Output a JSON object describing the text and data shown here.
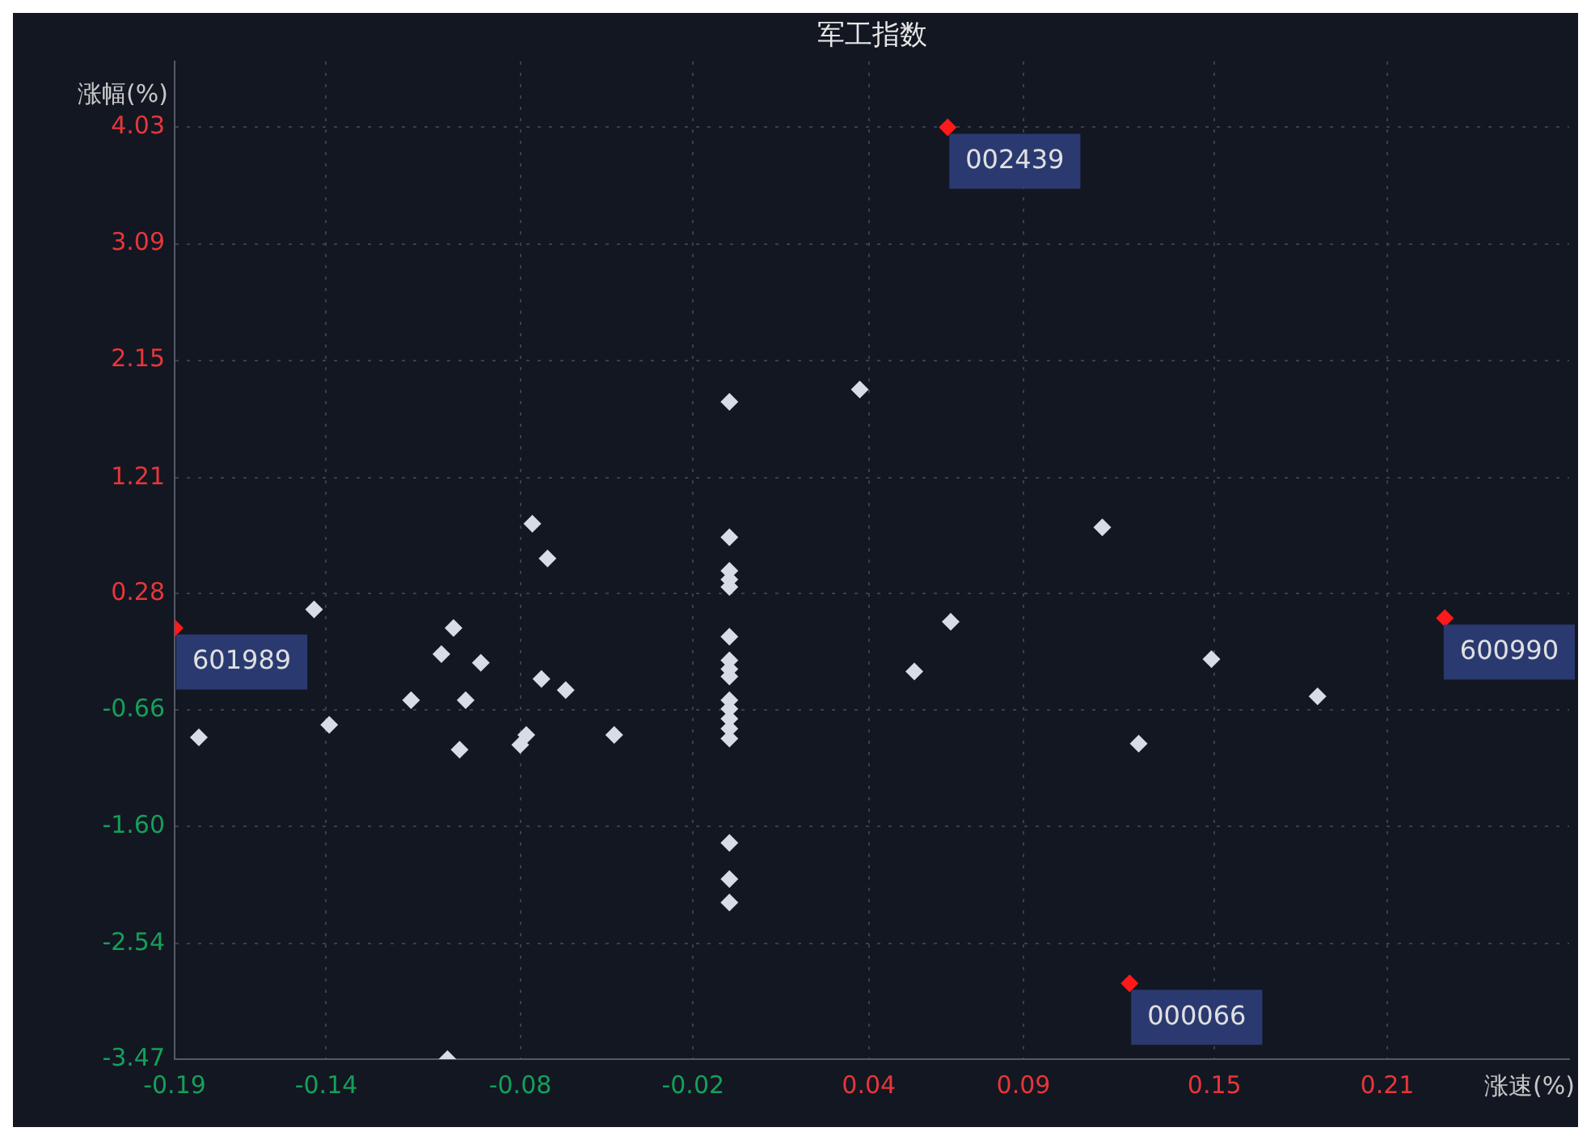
{
  "chart_data": {
    "type": "scatter",
    "title": "军工指数",
    "xlabel": "涨速(%)",
    "ylabel": "涨幅(%)",
    "xlim": [
      -0.19,
      0.27
    ],
    "ylim": [
      -3.47,
      4.56
    ],
    "xticks": [
      {
        "value": -0.19,
        "label": "-0.19"
      },
      -0.14,
      {
        "value": -0.076,
        "label": "-0.08"
      },
      {
        "value": -0.019,
        "label": "-0.02"
      },
      {
        "value": 0.039,
        "label": "0.04"
      },
      0.09,
      {
        "value": 0.153,
        "label": "0.15"
      },
      {
        "value": 0.21,
        "label": "0.21"
      }
    ],
    "yticks": [
      4.03,
      {
        "value": 3.0925,
        "label": "3.09"
      },
      {
        "value": 2.155,
        "label": "2.15"
      },
      1.21,
      0.28,
      {
        "value": -0.6575,
        "label": "-0.66"
      },
      {
        "value": -1.595,
        "label": "-1.60"
      },
      -2.54,
      -3.47
    ],
    "grid": true,
    "legend": false,
    "marker": "diamond",
    "series": [
      {
        "color": "#d8dce4",
        "x": [
          -0.182,
          -0.144,
          -0.139,
          -0.112,
          -0.098,
          -0.102,
          -0.089,
          -0.094,
          -0.096,
          -0.1,
          -0.072,
          -0.067,
          -0.069,
          -0.061,
          -0.074,
          -0.076,
          -0.045,
          -0.007,
          -0.007,
          -0.007,
          -0.007,
          -0.007,
          -0.007,
          -0.007,
          -0.007,
          -0.007,
          -0.007,
          -0.007,
          -0.007,
          -0.007,
          -0.007,
          -0.007,
          -0.007,
          -0.007,
          0.036,
          0.066,
          0.054,
          0.116,
          0.128,
          0.152,
          0.187
        ],
        "values": [
          -0.88,
          0.15,
          -0.78,
          -0.58,
          0.0,
          -0.21,
          -0.28,
          -0.58,
          -0.98,
          -3.47,
          0.84,
          0.56,
          -0.41,
          -0.5,
          -0.86,
          -0.94,
          -0.86,
          1.82,
          0.73,
          0.46,
          0.39,
          0.33,
          -0.07,
          -0.26,
          -0.33,
          -0.39,
          -0.58,
          -0.65,
          -0.73,
          -0.81,
          -0.89,
          -1.73,
          -2.02,
          -2.21,
          1.92,
          0.05,
          -0.35,
          0.81,
          -0.93,
          -0.25,
          -0.55
        ]
      },
      {
        "color": "#ff1a1a",
        "x": [
          0.065,
          -0.19,
          0.229,
          0.125
        ],
        "values": [
          4.03,
          0.0,
          0.08,
          -2.86
        ]
      }
    ],
    "annotations": [
      {
        "text": "002439",
        "x": 0.065,
        "y": 4.03
      },
      {
        "text": "601989",
        "x": -0.19,
        "y": 0.0
      },
      {
        "text": "600990",
        "x": 0.229,
        "y": 0.08
      },
      {
        "text": "000066",
        "x": 0.125,
        "y": -2.86
      }
    ]
  }
}
